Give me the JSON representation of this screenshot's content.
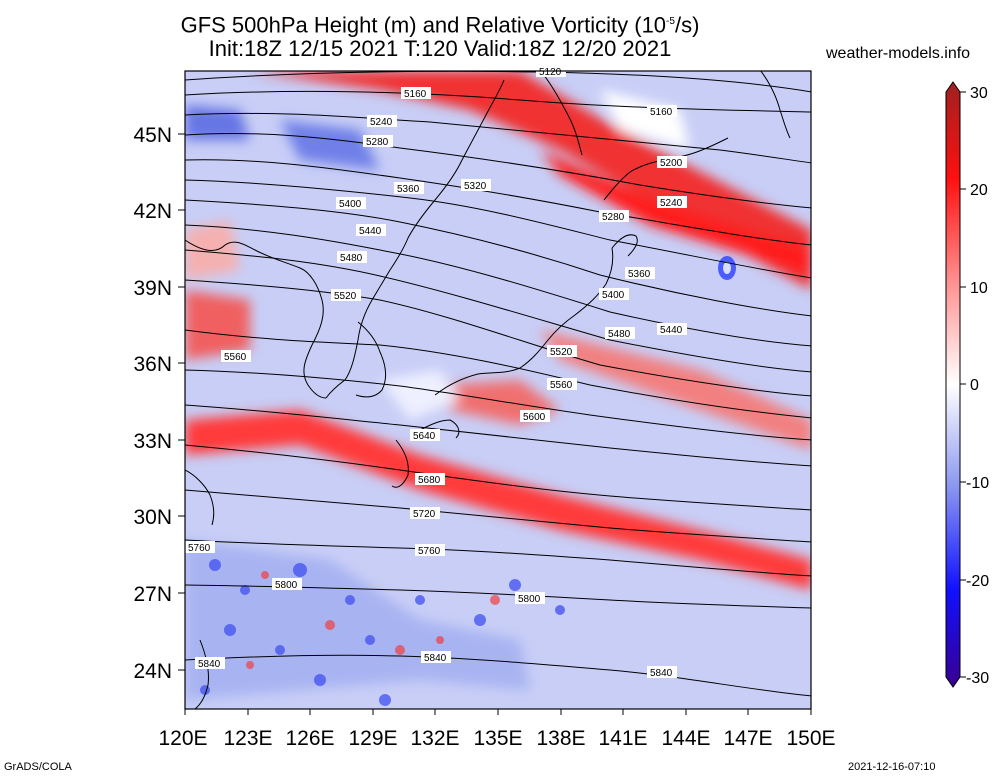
{
  "header": {
    "title_line1": "GFS 500hPa Height (m) and Relative Vorticity (10",
    "title_sup": "-5",
    "title_line1_end": "/s)",
    "title_line2": "Init:18Z 12/15 2021 T:120 Valid:18Z 12/20 2021",
    "site": "weather-models.info"
  },
  "footer": {
    "left": "GrADS/COLA",
    "right": "2021-12-16-07:10"
  },
  "map": {
    "lon_range": [
      120,
      150
    ],
    "lat_range": [
      22.5,
      47.5
    ],
    "x_ticks": [
      "120E",
      "123E",
      "126E",
      "129E",
      "132E",
      "135E",
      "138E",
      "141E",
      "144E",
      "147E",
      "150E"
    ],
    "y_ticks": [
      "24N",
      "27N",
      "30N",
      "33N",
      "36N",
      "39N",
      "42N",
      "45N"
    ],
    "contour_labels": [
      "5120",
      "5160",
      "5160",
      "5200",
      "5240",
      "5240",
      "5280",
      "5280",
      "5320",
      "5360",
      "5360",
      "5400",
      "5400",
      "5440",
      "5440",
      "5480",
      "5480",
      "5520",
      "5520",
      "5560",
      "5560",
      "5600",
      "5640",
      "5680",
      "5720",
      "5760",
      "5760",
      "5800",
      "5800",
      "5840",
      "5840",
      "5840"
    ]
  },
  "colorbar": {
    "labels": [
      "30",
      "20",
      "10",
      "0",
      "-10",
      "-20",
      "-30"
    ],
    "colors": {
      "pos_max": "#a02020",
      "pos_high": "#ff1010",
      "pos_mid": "#ff9090",
      "zero": "#ffffff",
      "neg_mid": "#8a96f0",
      "neg_high": "#1010ff",
      "neg_max": "#3a0090"
    }
  }
}
